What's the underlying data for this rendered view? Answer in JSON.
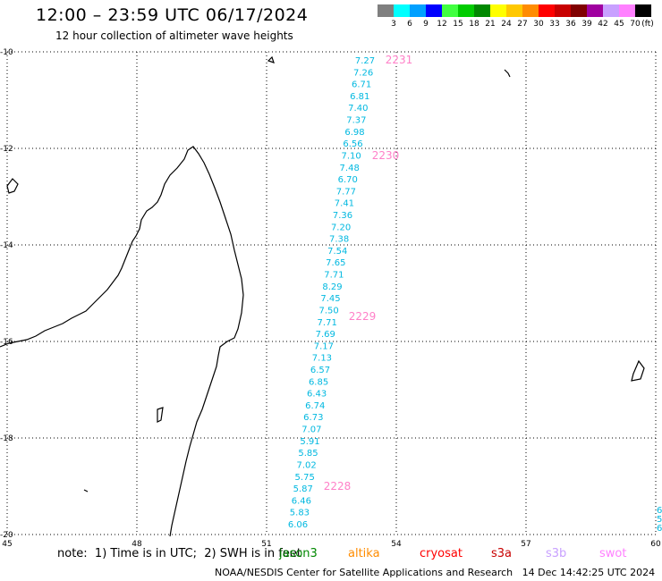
{
  "title": "12:00 – 23:59 UTC 06/17/2024",
  "subtitle": "12 hour collection of altimeter wave heights",
  "legend": {
    "unit": "(ft)",
    "items": [
      {
        "label": "3",
        "color": "#7f7f7f"
      },
      {
        "label": "6",
        "color": "#00ffff"
      },
      {
        "label": "9",
        "color": "#00a0ff"
      },
      {
        "label": "12",
        "color": "#0000ff"
      },
      {
        "label": "15",
        "color": "#40ff40"
      },
      {
        "label": "18",
        "color": "#00cc00"
      },
      {
        "label": "21",
        "color": "#008800"
      },
      {
        "label": "24",
        "color": "#ffff00"
      },
      {
        "label": "27",
        "color": "#ffc800"
      },
      {
        "label": "30",
        "color": "#ff8c00"
      },
      {
        "label": "33",
        "color": "#ff0000"
      },
      {
        "label": "36",
        "color": "#c80000"
      },
      {
        "label": "39",
        "color": "#800000"
      },
      {
        "label": "42",
        "color": "#a000a0"
      },
      {
        "label": "45",
        "color": "#c8a0ff"
      },
      {
        "label": "70",
        "color": "#ff80ff"
      },
      {
        "label": "",
        "color": "#000000"
      }
    ]
  },
  "axes": {
    "x_ticks": [
      "45",
      "48",
      "51",
      "54",
      "57",
      "60"
    ],
    "y_ticks": [
      "-10",
      "-12",
      "-14",
      "-16",
      "-18",
      "-20"
    ]
  },
  "track": {
    "color": "#00b8e0",
    "time_color": "#ff80c8",
    "heights": [
      "7.27",
      "7.26",
      "6.71",
      "6.81",
      "7.40",
      "7.37",
      "6.98",
      "6.56",
      "7.10",
      "7.48",
      "6.70",
      "7.77",
      "7.41",
      "7.36",
      "7.20",
      "7.38",
      "7.54",
      "7.65",
      "7.71",
      "8.29",
      "7.45",
      "7.50",
      "7.71",
      "7.69",
      "7.17",
      "7.13",
      "6.57",
      "6.85",
      "6.43",
      "6.74",
      "6.73",
      "7.07",
      "5.91",
      "5.85",
      "7.02",
      "5.75",
      "5.87",
      "6.46",
      "5.83",
      "6.06"
    ],
    "times": [
      "2231",
      "2230",
      "2229",
      "2228"
    ],
    "edge_labels": [
      "6",
      "5",
      "6"
    ]
  },
  "note": {
    "prefix": "note:  1) Time is in UTC;  2) SWH is in feet",
    "satellites": [
      {
        "name": "jason3",
        "color": "#008800"
      },
      {
        "name": "altika",
        "color": "#ff8c00"
      },
      {
        "name": "cryosat",
        "color": "#ff0000"
      },
      {
        "name": "s3a",
        "color": "#c80000"
      },
      {
        "name": "s3b",
        "color": "#c8a0ff"
      },
      {
        "name": "swot",
        "color": "#ff80ff"
      }
    ]
  },
  "footer": "NOAA/NESDIS Center for Satellite Applications and Research   14 Dec 14:42:25 UTC 2024"
}
